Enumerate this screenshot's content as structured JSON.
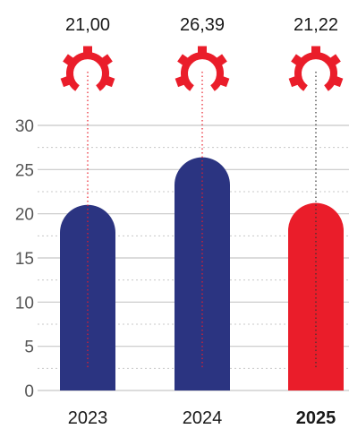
{
  "chart_data": {
    "type": "bar",
    "categories": [
      "2023",
      "2024",
      "2025"
    ],
    "values": [
      21.0,
      26.39,
      21.22
    ],
    "value_labels": [
      "21,00",
      "26,39",
      "21,22"
    ],
    "y_ticks": [
      "0",
      "5",
      "10",
      "15",
      "20",
      "25",
      "30"
    ],
    "ylim": [
      0,
      30
    ],
    "grid": true,
    "highlight_category": "2025",
    "colors": {
      "bar": "#2b3481",
      "highlight_bar": "#ea1d2a",
      "icon": "#ea1d2a",
      "grid": "#c8c8c8"
    },
    "icon": "gear-icon"
  }
}
